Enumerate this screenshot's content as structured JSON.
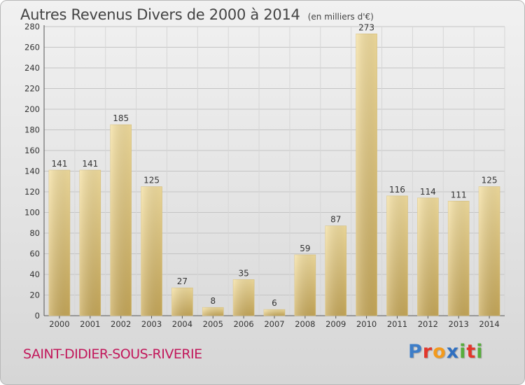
{
  "chart_data": {
    "type": "bar",
    "title": "Autres Revenus Divers de 2000 à 2014",
    "subtitle": "(en milliers d'€)",
    "categories": [
      "2000",
      "2001",
      "2002",
      "2003",
      "2004",
      "2005",
      "2006",
      "2007",
      "2008",
      "2009",
      "2010",
      "2011",
      "2012",
      "2013",
      "2014"
    ],
    "values": [
      141,
      141,
      185,
      125,
      27,
      8,
      35,
      6,
      59,
      87,
      273,
      116,
      114,
      111,
      125
    ],
    "ylim": [
      0,
      280
    ],
    "yticks": [
      0,
      20,
      40,
      60,
      80,
      100,
      120,
      140,
      160,
      180,
      200,
      220,
      240,
      260,
      280
    ],
    "grid": true,
    "data_labels": true,
    "bar_color": "#e8cf86"
  },
  "footer": {
    "commune": "SAINT-DIDIER-SOUS-RIVERIE",
    "brand": "Proxiti"
  }
}
